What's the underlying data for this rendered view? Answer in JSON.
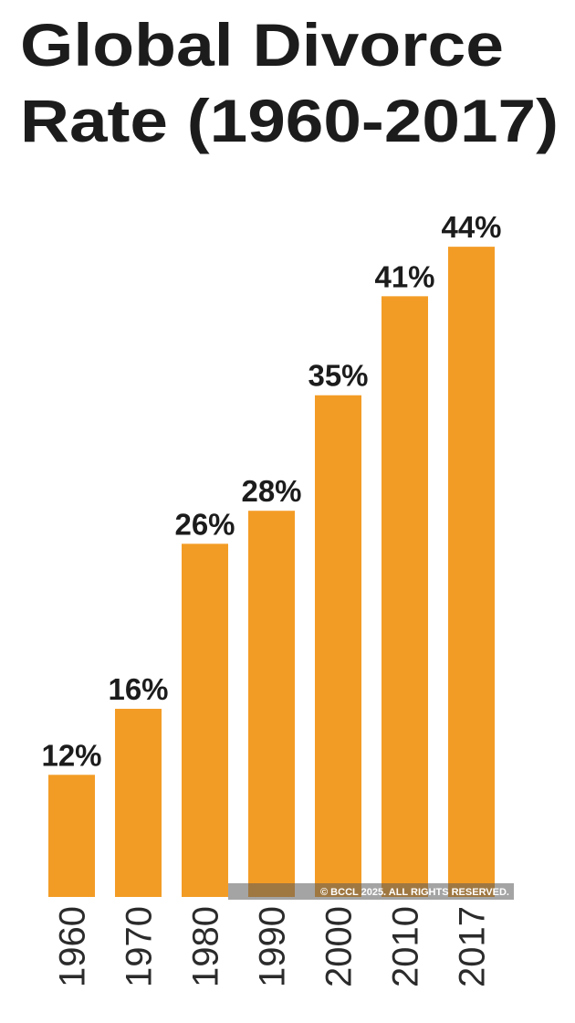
{
  "chart_data": {
    "type": "bar",
    "title": [
      "Global Divorce",
      "Rate (1960-2017)"
    ],
    "categories": [
      "1960",
      "1970",
      "1980",
      "1990",
      "2000",
      "2010",
      "2017"
    ],
    "values": [
      12,
      16,
      26,
      28,
      35,
      41,
      44
    ],
    "value_labels": [
      "12%",
      "16%",
      "26%",
      "28%",
      "35%",
      "41%",
      "44%"
    ],
    "color": "#f39c25",
    "ylim": [
      4.6,
      46
    ],
    "credit": "© BCCL 2025. ALL RIGHTS RESERVED."
  }
}
